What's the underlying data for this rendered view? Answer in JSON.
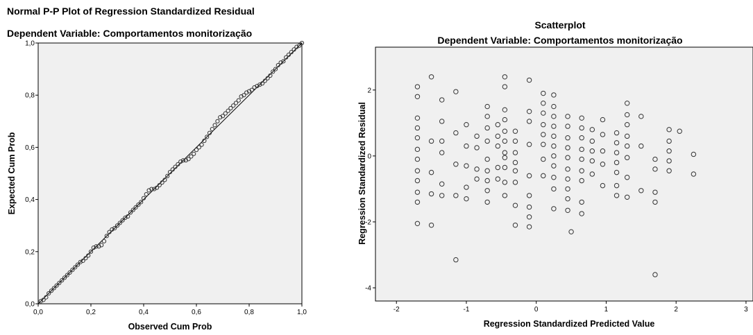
{
  "chart_data": [
    {
      "type": "scatter",
      "title": "Normal P-P Plot of Regression Standardized Residual",
      "subtitle": "Dependent Variable: Comportamentos monitorização",
      "xlabel": "Observed Cum Prob",
      "ylabel": "Expected Cum Prob",
      "xlim": [
        0,
        1
      ],
      "ylim": [
        0,
        1
      ],
      "x_ticks": [
        0,
        0.2,
        0.4,
        0.6,
        0.8,
        1
      ],
      "y_ticks": [
        0,
        0.2,
        0.4,
        0.6,
        0.8,
        1
      ],
      "x_tick_labels": [
        "0,0",
        "0,2",
        "0,4",
        "0,6",
        "0,8",
        "1,0"
      ],
      "y_tick_labels": [
        "0,0",
        "0,2",
        "0,4",
        "0,6",
        "0,8",
        "1,0"
      ],
      "grid": false,
      "reference_line": {
        "from": [
          0,
          0
        ],
        "to": [
          1,
          1
        ]
      },
      "series": [
        {
          "points": [
            [
              0.01,
              0.01
            ],
            [
              0.02,
              0.015
            ],
            [
              0.03,
              0.025
            ],
            [
              0.04,
              0.04
            ],
            [
              0.05,
              0.05
            ],
            [
              0.06,
              0.06
            ],
            [
              0.07,
              0.07
            ],
            [
              0.08,
              0.08
            ],
            [
              0.09,
              0.09
            ],
            [
              0.1,
              0.1
            ],
            [
              0.11,
              0.11
            ],
            [
              0.12,
              0.12
            ],
            [
              0.13,
              0.13
            ],
            [
              0.14,
              0.14
            ],
            [
              0.15,
              0.15
            ],
            [
              0.16,
              0.16
            ],
            [
              0.17,
              0.165
            ],
            [
              0.18,
              0.175
            ],
            [
              0.19,
              0.185
            ],
            [
              0.2,
              0.2
            ],
            [
              0.21,
              0.215
            ],
            [
              0.22,
              0.22
            ],
            [
              0.23,
              0.22
            ],
            [
              0.24,
              0.225
            ],
            [
              0.25,
              0.24
            ],
            [
              0.26,
              0.26
            ],
            [
              0.27,
              0.275
            ],
            [
              0.28,
              0.285
            ],
            [
              0.29,
              0.29
            ],
            [
              0.3,
              0.3
            ],
            [
              0.31,
              0.31
            ],
            [
              0.32,
              0.32
            ],
            [
              0.33,
              0.33
            ],
            [
              0.34,
              0.335
            ],
            [
              0.35,
              0.35
            ],
            [
              0.36,
              0.36
            ],
            [
              0.37,
              0.37
            ],
            [
              0.38,
              0.38
            ],
            [
              0.39,
              0.39
            ],
            [
              0.4,
              0.405
            ],
            [
              0.41,
              0.42
            ],
            [
              0.42,
              0.435
            ],
            [
              0.43,
              0.44
            ],
            [
              0.44,
              0.44
            ],
            [
              0.45,
              0.445
            ],
            [
              0.46,
              0.455
            ],
            [
              0.47,
              0.465
            ],
            [
              0.48,
              0.475
            ],
            [
              0.49,
              0.49
            ],
            [
              0.5,
              0.505
            ],
            [
              0.51,
              0.515
            ],
            [
              0.52,
              0.525
            ],
            [
              0.53,
              0.535
            ],
            [
              0.54,
              0.545
            ],
            [
              0.55,
              0.55
            ],
            [
              0.56,
              0.55
            ],
            [
              0.57,
              0.555
            ],
            [
              0.58,
              0.565
            ],
            [
              0.59,
              0.575
            ],
            [
              0.6,
              0.59
            ],
            [
              0.61,
              0.6
            ],
            [
              0.62,
              0.61
            ],
            [
              0.63,
              0.625
            ],
            [
              0.64,
              0.64
            ],
            [
              0.65,
              0.655
            ],
            [
              0.66,
              0.67
            ],
            [
              0.67,
              0.685
            ],
            [
              0.68,
              0.7
            ],
            [
              0.69,
              0.715
            ],
            [
              0.7,
              0.72
            ],
            [
              0.71,
              0.73
            ],
            [
              0.72,
              0.74
            ],
            [
              0.73,
              0.75
            ],
            [
              0.74,
              0.76
            ],
            [
              0.75,
              0.77
            ],
            [
              0.76,
              0.78
            ],
            [
              0.77,
              0.795
            ],
            [
              0.78,
              0.8
            ],
            [
              0.79,
              0.81
            ],
            [
              0.8,
              0.815
            ],
            [
              0.81,
              0.82
            ],
            [
              0.82,
              0.83
            ],
            [
              0.83,
              0.835
            ],
            [
              0.84,
              0.84
            ],
            [
              0.85,
              0.845
            ],
            [
              0.86,
              0.855
            ],
            [
              0.87,
              0.865
            ],
            [
              0.88,
              0.875
            ],
            [
              0.89,
              0.89
            ],
            [
              0.9,
              0.9
            ],
            [
              0.91,
              0.915
            ],
            [
              0.92,
              0.925
            ],
            [
              0.93,
              0.93
            ],
            [
              0.94,
              0.945
            ],
            [
              0.95,
              0.955
            ],
            [
              0.96,
              0.965
            ],
            [
              0.97,
              0.975
            ],
            [
              0.98,
              0.985
            ],
            [
              0.99,
              0.99
            ],
            [
              1.0,
              1.0
            ]
          ]
        }
      ]
    },
    {
      "type": "scatter",
      "title": "Scatterplot",
      "subtitle": "Dependent Variable: Comportamentos monitorização",
      "xlabel": "Regression Standardized Predicted Value",
      "ylabel": "Regression Standardized Residual",
      "xlim": [
        -2.3,
        3.1
      ],
      "ylim": [
        -4.4,
        3.3
      ],
      "x_ticks": [
        -2,
        -1,
        0,
        1,
        2,
        3
      ],
      "y_ticks": [
        -4,
        -2,
        0,
        2
      ],
      "grid": false,
      "series": [
        {
          "points": [
            [
              -1.7,
              2.1
            ],
            [
              -1.7,
              1.8
            ],
            [
              -1.7,
              1.15
            ],
            [
              -1.7,
              0.85
            ],
            [
              -1.7,
              0.55
            ],
            [
              -1.7,
              0.2
            ],
            [
              -1.7,
              -0.1
            ],
            [
              -1.7,
              -0.45
            ],
            [
              -1.7,
              -0.75
            ],
            [
              -1.7,
              -1.1
            ],
            [
              -1.7,
              -1.4
            ],
            [
              -1.7,
              -2.05
            ],
            [
              -1.5,
              2.4
            ],
            [
              -1.5,
              0.45
            ],
            [
              -1.5,
              -0.5
            ],
            [
              -1.5,
              -1.15
            ],
            [
              -1.5,
              -2.1
            ],
            [
              -1.35,
              1.7
            ],
            [
              -1.35,
              1.05
            ],
            [
              -1.35,
              0.45
            ],
            [
              -1.35,
              0.1
            ],
            [
              -1.35,
              -0.85
            ],
            [
              -1.35,
              -1.2
            ],
            [
              -1.15,
              1.95
            ],
            [
              -1.15,
              0.7
            ],
            [
              -1.15,
              -0.25
            ],
            [
              -1.15,
              -1.2
            ],
            [
              -1.15,
              -3.15
            ],
            [
              -1.0,
              0.95
            ],
            [
              -1.0,
              0.3
            ],
            [
              -1.0,
              -0.3
            ],
            [
              -1.0,
              -0.95
            ],
            [
              -1.0,
              -1.3
            ],
            [
              -0.85,
              0.6
            ],
            [
              -0.85,
              0.25
            ],
            [
              -0.85,
              -0.4
            ],
            [
              -0.85,
              -0.7
            ],
            [
              -0.7,
              1.5
            ],
            [
              -0.7,
              1.2
            ],
            [
              -0.7,
              0.85
            ],
            [
              -0.7,
              0.45
            ],
            [
              -0.7,
              -0.1
            ],
            [
              -0.7,
              -0.45
            ],
            [
              -0.7,
              -0.75
            ],
            [
              -0.7,
              -1.05
            ],
            [
              -0.7,
              -1.4
            ],
            [
              -0.55,
              0.95
            ],
            [
              -0.55,
              0.6
            ],
            [
              -0.55,
              0.3
            ],
            [
              -0.55,
              -0.35
            ],
            [
              -0.55,
              -0.7
            ],
            [
              -0.45,
              2.4
            ],
            [
              -0.45,
              2.1
            ],
            [
              -0.45,
              1.4
            ],
            [
              -0.45,
              1.1
            ],
            [
              -0.45,
              0.75
            ],
            [
              -0.45,
              0.45
            ],
            [
              -0.45,
              0.1
            ],
            [
              -0.45,
              -0.05
            ],
            [
              -0.45,
              -0.35
            ],
            [
              -0.45,
              -0.8
            ],
            [
              -0.45,
              -1.2
            ],
            [
              -0.3,
              0.75
            ],
            [
              -0.3,
              0.45
            ],
            [
              -0.3,
              0.1
            ],
            [
              -0.3,
              -0.2
            ],
            [
              -0.3,
              -0.45
            ],
            [
              -0.3,
              -0.8
            ],
            [
              -0.3,
              -1.5
            ],
            [
              -0.3,
              -2.1
            ],
            [
              -0.1,
              2.3
            ],
            [
              -0.1,
              1.35
            ],
            [
              -0.1,
              1.05
            ],
            [
              -0.1,
              0.35
            ],
            [
              -0.1,
              -0.6
            ],
            [
              -0.1,
              -1.2
            ],
            [
              -0.1,
              -1.55
            ],
            [
              -0.1,
              -1.85
            ],
            [
              -0.1,
              -2.15
            ],
            [
              0.1,
              1.9
            ],
            [
              0.1,
              1.6
            ],
            [
              0.1,
              1.3
            ],
            [
              0.1,
              0.95
            ],
            [
              0.1,
              0.65
            ],
            [
              0.1,
              0.35
            ],
            [
              0.1,
              -0.1
            ],
            [
              0.1,
              -0.6
            ],
            [
              0.25,
              1.85
            ],
            [
              0.25,
              1.5
            ],
            [
              0.25,
              1.2
            ],
            [
              0.25,
              0.9
            ],
            [
              0.25,
              0.6
            ],
            [
              0.25,
              0.3
            ],
            [
              0.25,
              0.0
            ],
            [
              0.25,
              -0.3
            ],
            [
              0.25,
              -0.65
            ],
            [
              0.25,
              -1.0
            ],
            [
              0.25,
              -1.6
            ],
            [
              0.45,
              1.2
            ],
            [
              0.45,
              0.9
            ],
            [
              0.45,
              0.55
            ],
            [
              0.45,
              0.25
            ],
            [
              0.45,
              -0.05
            ],
            [
              0.45,
              -0.4
            ],
            [
              0.45,
              -0.7
            ],
            [
              0.45,
              -1.0
            ],
            [
              0.45,
              -1.3
            ],
            [
              0.45,
              -1.65
            ],
            [
              0.5,
              -2.3
            ],
            [
              0.65,
              1.15
            ],
            [
              0.65,
              0.85
            ],
            [
              0.65,
              0.55
            ],
            [
              0.65,
              0.2
            ],
            [
              0.65,
              -0.1
            ],
            [
              0.65,
              -0.45
            ],
            [
              0.65,
              -0.75
            ],
            [
              0.65,
              -1.4
            ],
            [
              0.65,
              -1.75
            ],
            [
              0.8,
              0.8
            ],
            [
              0.8,
              0.45
            ],
            [
              0.8,
              0.15
            ],
            [
              0.8,
              -0.15
            ],
            [
              0.8,
              -0.55
            ],
            [
              0.95,
              1.1
            ],
            [
              0.95,
              0.65
            ],
            [
              0.95,
              0.15
            ],
            [
              0.95,
              -0.25
            ],
            [
              0.95,
              -0.9
            ],
            [
              1.15,
              0.7
            ],
            [
              1.15,
              0.4
            ],
            [
              1.15,
              0.1
            ],
            [
              1.15,
              -0.2
            ],
            [
              1.15,
              -0.5
            ],
            [
              1.15,
              -0.9
            ],
            [
              1.15,
              -1.2
            ],
            [
              1.3,
              1.6
            ],
            [
              1.3,
              1.25
            ],
            [
              1.3,
              0.95
            ],
            [
              1.3,
              0.6
            ],
            [
              1.3,
              0.3
            ],
            [
              1.3,
              -0.05
            ],
            [
              1.3,
              -0.65
            ],
            [
              1.3,
              -1.25
            ],
            [
              1.5,
              1.2
            ],
            [
              1.5,
              0.3
            ],
            [
              1.5,
              -1.05
            ],
            [
              1.7,
              -0.1
            ],
            [
              1.7,
              -0.4
            ],
            [
              1.7,
              -1.1
            ],
            [
              1.7,
              -1.4
            ],
            [
              1.7,
              -3.6
            ],
            [
              1.9,
              0.8
            ],
            [
              1.9,
              0.45
            ],
            [
              1.9,
              0.15
            ],
            [
              1.9,
              -0.15
            ],
            [
              1.9,
              -0.45
            ],
            [
              2.05,
              0.75
            ],
            [
              2.25,
              0.05
            ],
            [
              2.25,
              -0.55
            ]
          ]
        }
      ]
    }
  ]
}
